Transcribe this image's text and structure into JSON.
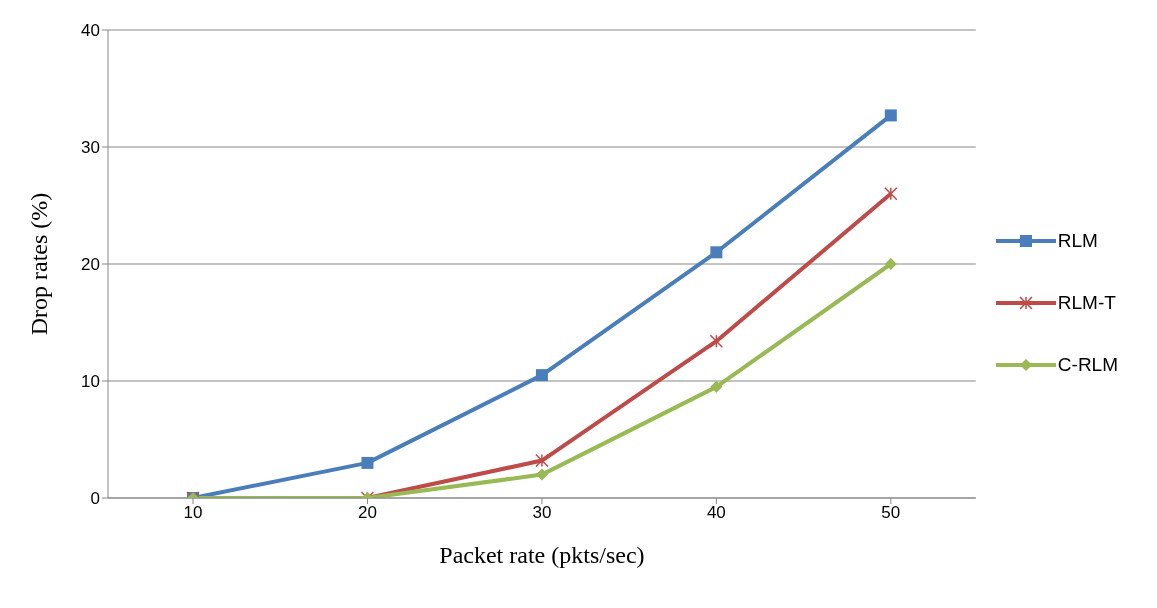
{
  "chart_data": {
    "type": "line",
    "xlabel": "Packet rate (pkts/sec)",
    "ylabel": "Drop rates (%)",
    "categories": [
      "10",
      "20",
      "30",
      "40",
      "50"
    ],
    "ylim": [
      0,
      40
    ],
    "yticks": [
      0,
      10,
      20,
      30,
      40
    ],
    "grid": "y",
    "legend": "right",
    "series": [
      {
        "name": "RLM",
        "color": "#4a7ebb",
        "marker": "square",
        "values": [
          0,
          3,
          10.5,
          21,
          32.7
        ]
      },
      {
        "name": "RLM-T",
        "color": "#be4b48",
        "marker": "cross",
        "values": [
          0,
          0,
          3.2,
          13.4,
          26
        ]
      },
      {
        "name": "C-RLM",
        "color": "#98b954",
        "marker": "diamond",
        "values": [
          0,
          0,
          2,
          9.5,
          20
        ]
      }
    ]
  }
}
